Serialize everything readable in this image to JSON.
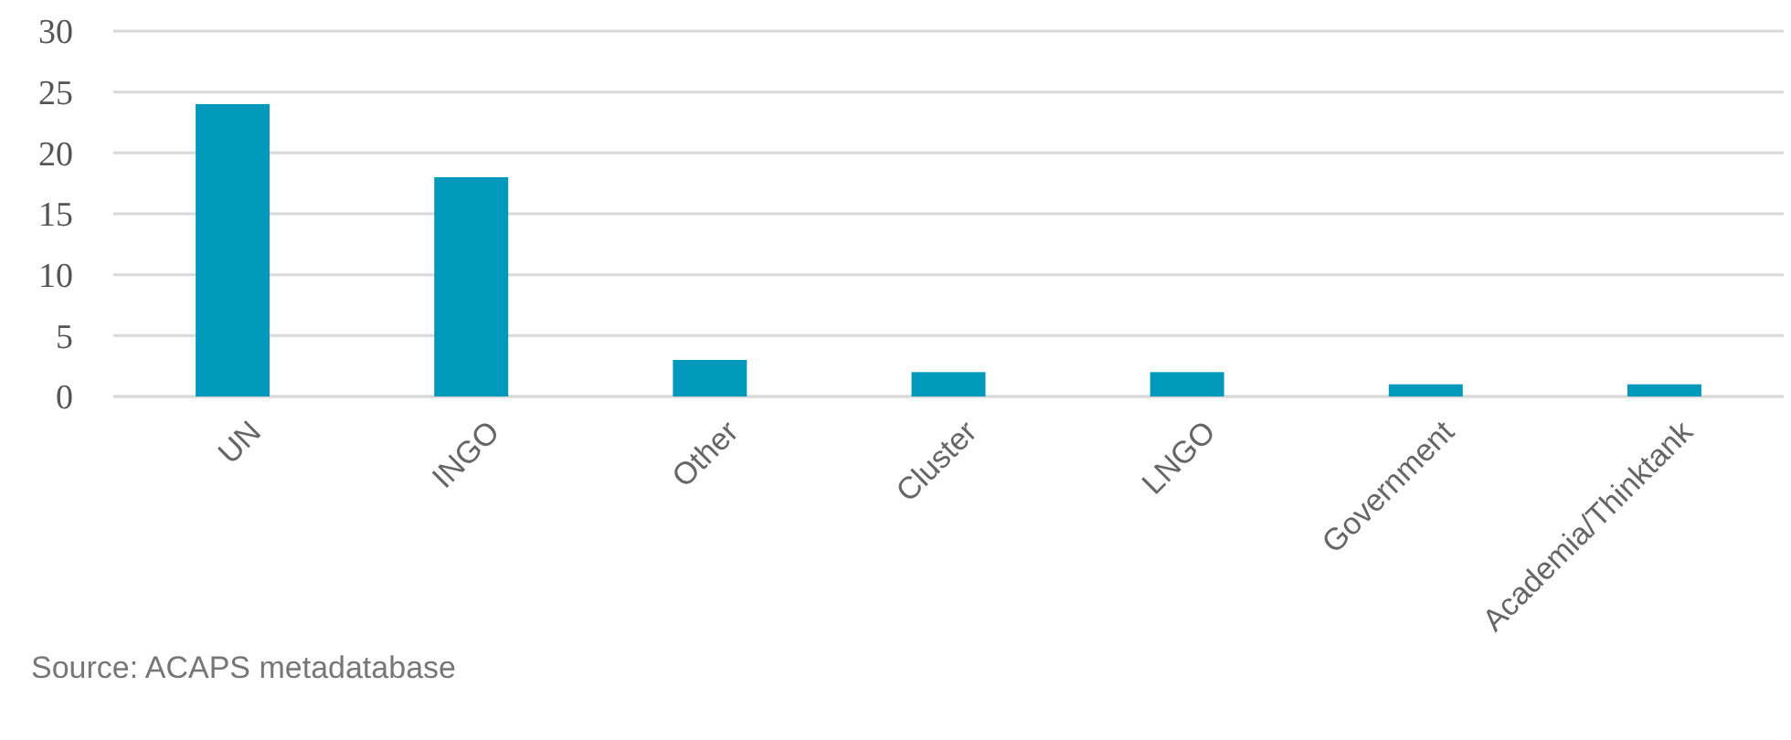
{
  "chart_data": {
    "type": "bar",
    "categories": [
      "UN",
      "INGO",
      "Other",
      "Cluster",
      "LNGO",
      "Government",
      "Academia/Thinktank"
    ],
    "values": [
      24,
      18,
      3,
      2,
      2,
      1,
      1
    ],
    "color": "#0098bb",
    "ylim": [
      0,
      30
    ],
    "yticks": [
      0,
      5,
      10,
      15,
      20,
      25,
      30
    ],
    "grid": "y",
    "annotations": [
      "Source: ACAPS metadatabase"
    ]
  }
}
